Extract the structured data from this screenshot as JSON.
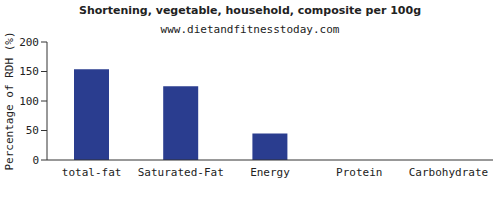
{
  "chart_data": {
    "type": "bar",
    "title": "Shortening, vegetable, household, composite per 100g",
    "subtitle": "www.dietandfitnesstoday.com",
    "y_label": "Percentage of RDH (%)",
    "categories": [
      "total-fat",
      "Saturated-Fat",
      "Energy",
      "Protein",
      "Carbohydrate"
    ],
    "values": [
      154,
      125,
      45,
      0,
      0
    ],
    "color": "#2a3d8f",
    "ylim": [
      0,
      200
    ],
    "yticks": [
      0,
      50,
      100,
      150,
      200
    ],
    "grid": false
  }
}
